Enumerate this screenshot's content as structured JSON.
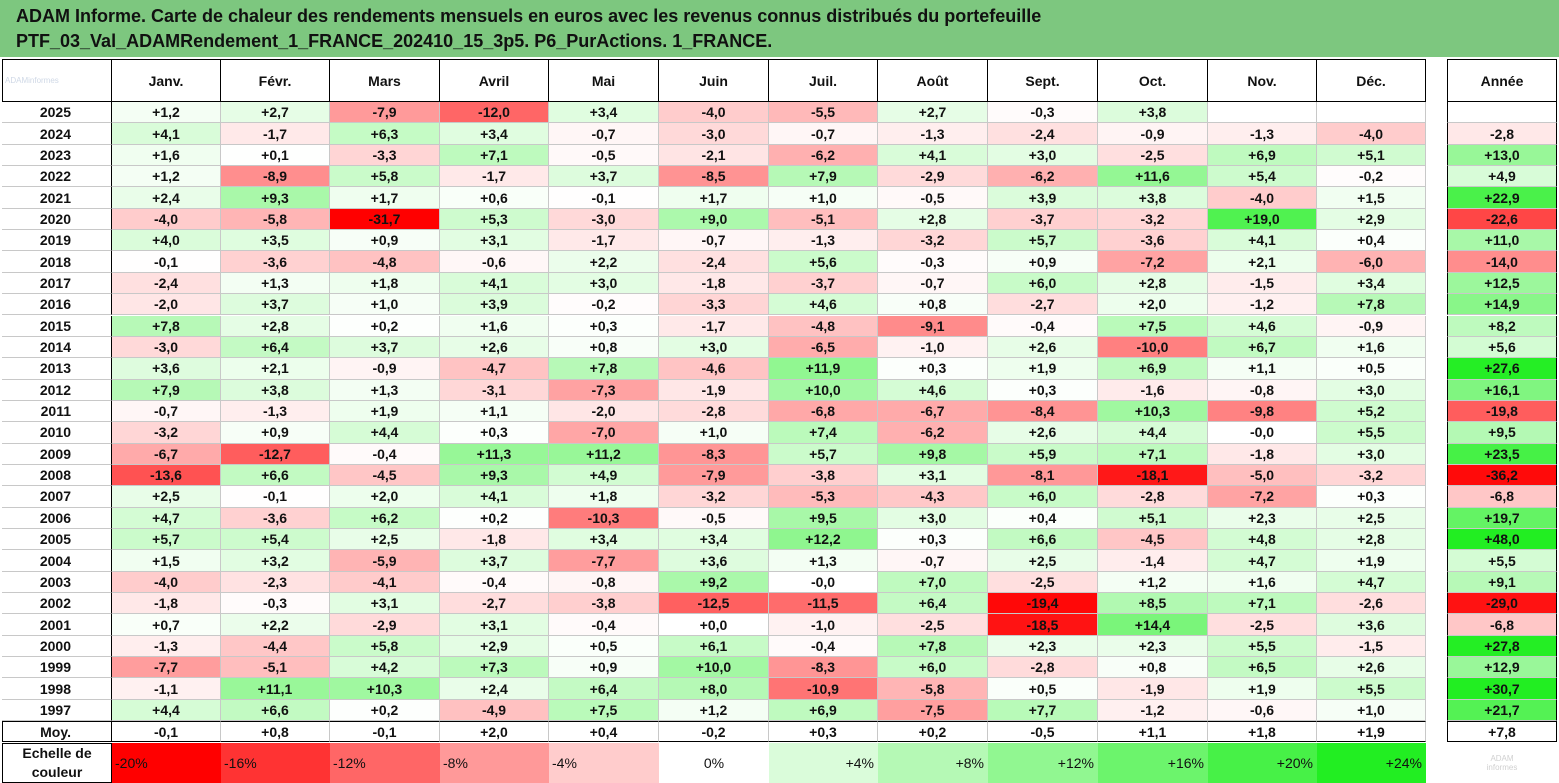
{
  "header": {
    "title_line1": "ADAM Informe. Carte de chaleur des rendements mensuels en euros avec les revenus connus distribués du portefeuille",
    "title_line2": "PTF_03_Val_ADAMRendement_1_FRANCE_202410_15_3p5. P6_PurActions. 1_FRANCE.",
    "background": "#7dc77f",
    "corner_logo": "ADAMinformes"
  },
  "colors": {
    "negative_max": "#ff0000",
    "neutral": "#ffffff",
    "positive_max": "#22ee22"
  },
  "chart_data": {
    "type": "heatmap",
    "title": "Carte de chaleur des rendements mensuels en euros",
    "months": [
      "Janv.",
      "Févr.",
      "Mars",
      "Avril",
      "Mai",
      "Juin",
      "Juil.",
      "Août",
      "Sept.",
      "Oct.",
      "Nov.",
      "Déc."
    ],
    "year_label": "Année",
    "rows": [
      {
        "year": "2025",
        "m": [
          "+1,2",
          "+2,7",
          "-7,9",
          "-12,0",
          "+3,4",
          "-4,0",
          "-5,5",
          "+2,7",
          "-0,3",
          "+3,8",
          "",
          ""
        ],
        "y": ""
      },
      {
        "year": "2024",
        "m": [
          "+4,1",
          "-1,7",
          "+6,3",
          "+3,4",
          "-0,7",
          "-3,0",
          "-0,7",
          "-1,3",
          "-2,4",
          "-0,9",
          "-1,3",
          "-4,0"
        ],
        "y": "-2,8"
      },
      {
        "year": "2023",
        "m": [
          "+1,6",
          "+0,1",
          "-3,3",
          "+7,1",
          "-0,5",
          "-2,1",
          "-6,2",
          "+4,1",
          "+3,0",
          "-2,5",
          "+6,9",
          "+5,1"
        ],
        "y": "+13,0"
      },
      {
        "year": "2022",
        "m": [
          "+1,2",
          "-8,9",
          "+5,8",
          "-1,7",
          "+3,7",
          "-8,5",
          "+7,9",
          "-2,9",
          "-6,2",
          "+11,6",
          "+5,4",
          "-0,2"
        ],
        "y": "+4,9"
      },
      {
        "year": "2021",
        "m": [
          "+2,4",
          "+9,3",
          "+1,7",
          "+0,6",
          "-0,1",
          "+1,7",
          "+1,0",
          "-0,5",
          "+3,9",
          "+3,8",
          "-4,0",
          "+1,5"
        ],
        "y": "+22,9"
      },
      {
        "year": "2020",
        "m": [
          "-4,0",
          "-5,8",
          "-31,7",
          "+5,3",
          "-3,0",
          "+9,0",
          "-5,1",
          "+2,8",
          "-3,7",
          "-3,2",
          "+19,0",
          "+2,9"
        ],
        "y": "-22,6"
      },
      {
        "year": "2019",
        "m": [
          "+4,0",
          "+3,5",
          "+0,9",
          "+3,1",
          "-1,7",
          "-0,7",
          "-1,3",
          "-3,2",
          "+5,7",
          "-3,6",
          "+4,1",
          "+0,4"
        ],
        "y": "+11,0"
      },
      {
        "year": "2018",
        "m": [
          "-0,1",
          "-3,6",
          "-4,8",
          "-0,6",
          "+2,2",
          "-2,4",
          "+5,6",
          "-0,3",
          "+0,9",
          "-7,2",
          "+2,1",
          "-6,0"
        ],
        "y": "-14,0"
      },
      {
        "year": "2017",
        "m": [
          "-2,4",
          "+1,3",
          "+1,8",
          "+4,1",
          "+3,0",
          "-1,8",
          "-3,7",
          "-0,7",
          "+6,0",
          "+2,8",
          "-1,5",
          "+3,4"
        ],
        "y": "+12,5"
      },
      {
        "year": "2016",
        "m": [
          "-2,0",
          "+3,7",
          "+1,0",
          "+3,9",
          "-0,2",
          "-3,3",
          "+4,6",
          "+0,8",
          "-2,7",
          "+2,0",
          "-1,2",
          "+7,8"
        ],
        "y": "+14,9"
      },
      {
        "year": "2015",
        "m": [
          "+7,8",
          "+2,8",
          "+0,2",
          "+1,6",
          "+0,3",
          "-1,7",
          "-4,8",
          "-9,1",
          "-0,4",
          "+7,5",
          "+4,6",
          "-0,9"
        ],
        "y": "+8,2"
      },
      {
        "year": "2014",
        "m": [
          "-3,0",
          "+6,4",
          "+3,7",
          "+2,6",
          "+0,8",
          "+3,0",
          "-6,5",
          "-1,0",
          "+2,6",
          "-10,0",
          "+6,7",
          "+1,6"
        ],
        "y": "+5,6"
      },
      {
        "year": "2013",
        "m": [
          "+3,6",
          "+2,1",
          "-0,9",
          "-4,7",
          "+7,8",
          "-4,6",
          "+11,9",
          "+0,3",
          "+1,9",
          "+6,9",
          "+1,1",
          "+0,5"
        ],
        "y": "+27,6"
      },
      {
        "year": "2012",
        "m": [
          "+7,9",
          "+3,8",
          "+1,3",
          "-3,1",
          "-7,3",
          "-1,9",
          "+10,0",
          "+4,6",
          "+0,3",
          "-1,6",
          "-0,8",
          "+3,0"
        ],
        "y": "+16,1"
      },
      {
        "year": "2011",
        "m": [
          "-0,7",
          "-1,3",
          "+1,9",
          "+1,1",
          "-2,0",
          "-2,8",
          "-6,8",
          "-6,7",
          "-8,4",
          "+10,3",
          "-9,8",
          "+5,2"
        ],
        "y": "-19,8"
      },
      {
        "year": "2010",
        "m": [
          "-3,2",
          "+0,9",
          "+4,4",
          "+0,3",
          "-7,0",
          "+1,0",
          "+7,4",
          "-6,2",
          "+2,6",
          "+4,4",
          "-0,0",
          "+5,5"
        ],
        "y": "+9,5"
      },
      {
        "year": "2009",
        "m": [
          "-6,7",
          "-12,7",
          "-0,4",
          "+11,3",
          "+11,2",
          "-8,3",
          "+5,7",
          "+9,8",
          "+5,9",
          "+7,1",
          "-1,8",
          "+3,0"
        ],
        "y": "+23,5"
      },
      {
        "year": "2008",
        "m": [
          "-13,6",
          "+6,6",
          "-4,5",
          "+9,3",
          "+4,9",
          "-7,9",
          "-3,8",
          "+3,1",
          "-8,1",
          "-18,1",
          "-5,0",
          "-3,2"
        ],
        "y": "-36,2"
      },
      {
        "year": "2007",
        "m": [
          "+2,5",
          "-0,1",
          "+2,0",
          "+4,1",
          "+1,8",
          "-3,2",
          "-5,3",
          "-4,3",
          "+6,0",
          "-2,8",
          "-7,2",
          "+0,3"
        ],
        "y": "-6,8"
      },
      {
        "year": "2006",
        "m": [
          "+4,7",
          "-3,6",
          "+6,2",
          "+0,2",
          "-10,3",
          "-0,5",
          "+9,5",
          "+3,0",
          "+0,4",
          "+5,1",
          "+2,3",
          "+2,5"
        ],
        "y": "+19,7"
      },
      {
        "year": "2005",
        "m": [
          "+5,7",
          "+5,4",
          "+2,5",
          "-1,8",
          "+3,4",
          "+3,4",
          "+12,2",
          "+0,3",
          "+6,6",
          "-4,5",
          "+4,8",
          "+2,8"
        ],
        "y": "+48,0"
      },
      {
        "year": "2004",
        "m": [
          "+1,5",
          "+3,2",
          "-5,9",
          "+3,7",
          "-7,7",
          "+3,6",
          "+1,3",
          "-0,7",
          "+2,5",
          "-1,4",
          "+4,7",
          "+1,9"
        ],
        "y": "+5,5"
      },
      {
        "year": "2003",
        "m": [
          "-4,0",
          "-2,3",
          "-4,1",
          "-0,4",
          "-0,8",
          "+9,2",
          "-0,0",
          "+7,0",
          "-2,5",
          "+1,2",
          "+1,6",
          "+4,7"
        ],
        "y": "+9,1"
      },
      {
        "year": "2002",
        "m": [
          "-1,8",
          "-0,3",
          "+3,1",
          "-2,7",
          "-3,8",
          "-12,5",
          "-11,5",
          "+6,4",
          "-19,4",
          "+8,5",
          "+7,1",
          "-2,6"
        ],
        "y": "-29,0"
      },
      {
        "year": "2001",
        "m": [
          "+0,7",
          "+2,2",
          "-2,9",
          "+3,1",
          "-0,4",
          "+0,0",
          "-1,0",
          "-2,5",
          "-18,5",
          "+14,4",
          "-2,5",
          "+3,6"
        ],
        "y": "-6,8"
      },
      {
        "year": "2000",
        "m": [
          "-1,3",
          "-4,4",
          "+5,8",
          "+2,9",
          "+0,5",
          "+6,1",
          "-0,4",
          "+7,8",
          "+2,3",
          "+2,3",
          "+5,5",
          "-1,5"
        ],
        "y": "+27,8"
      },
      {
        "year": "1999",
        "m": [
          "-7,7",
          "-5,1",
          "+4,2",
          "+7,3",
          "+0,9",
          "+10,0",
          "-8,3",
          "+6,0",
          "-2,8",
          "+0,8",
          "+6,5",
          "+2,6"
        ],
        "y": "+12,9"
      },
      {
        "year": "1998",
        "m": [
          "-1,1",
          "+11,1",
          "+10,3",
          "+2,4",
          "+6,4",
          "+8,0",
          "-10,9",
          "-5,8",
          "+0,5",
          "-1,9",
          "+1,9",
          "+5,5"
        ],
        "y": "+30,7"
      },
      {
        "year": "1997",
        "m": [
          "+4,4",
          "+6,6",
          "+0,2",
          "-4,9",
          "+7,5",
          "+1,2",
          "+6,9",
          "-7,5",
          "+7,7",
          "-1,2",
          "-0,6",
          "+1,0"
        ],
        "y": "+21,7"
      }
    ],
    "average": {
      "label": "Moy.",
      "m": [
        "-0,1",
        "+0,8",
        "-0,1",
        "+2,0",
        "+0,4",
        "-0,2",
        "+0,3",
        "+0,2",
        "-0,5",
        "+1,1",
        "+1,8",
        "+1,9"
      ],
      "y": "+7,8"
    },
    "scale": {
      "label_line1": "Echelle de",
      "label_line2": "couleur",
      "stops": [
        "-20%",
        "-16%",
        "-12%",
        "-8%",
        "-4%",
        "0%",
        "+4%",
        "+8%",
        "+12%",
        "+16%",
        "+20%",
        "+24%"
      ],
      "values": [
        -20,
        -16,
        -12,
        -8,
        -4,
        0,
        4,
        8,
        12,
        16,
        20,
        24
      ]
    },
    "watermark": [
      "ADAM",
      "informes"
    ]
  }
}
